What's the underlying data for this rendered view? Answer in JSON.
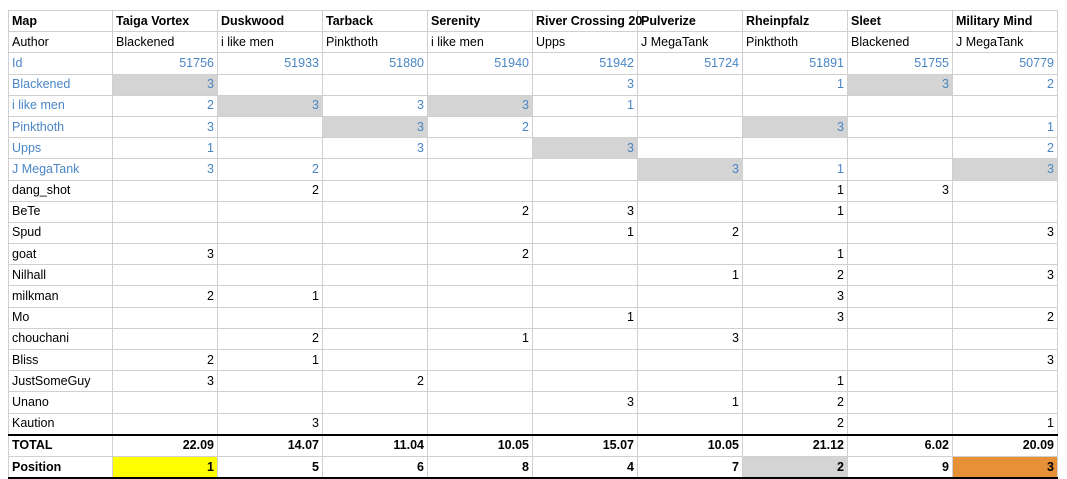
{
  "colors": {
    "link_blue": "#4a86c5",
    "self_vote_gray": "#d4d4d4",
    "first_place": "#ffff00",
    "third_place": "#e69138",
    "second_place": "#d4d4d4"
  },
  "row_labels": {
    "map": "Map",
    "author": "Author",
    "id": "Id",
    "total": "TOTAL",
    "position": "Position"
  },
  "maps": [
    {
      "name": "Taiga Vortex",
      "author": "Blackened",
      "id": "51756"
    },
    {
      "name": "Duskwood",
      "author": "i like men",
      "id": "51933"
    },
    {
      "name": "Tarback",
      "author": "Pinkthoth",
      "id": "51880"
    },
    {
      "name": "Serenity",
      "author": "i like men",
      "id": "51940"
    },
    {
      "name": "River Crossing 20",
      "author": "Upps",
      "id": "51942"
    },
    {
      "name": "Pulverize",
      "author": "J MegaTank",
      "id": "51724"
    },
    {
      "name": "Rheinpfalz",
      "author": "Pinkthoth",
      "id": "51891"
    },
    {
      "name": "Sleet",
      "author": "Blackened",
      "id": "51755"
    },
    {
      "name": "Military Mind",
      "author": "J MegaTank",
      "id": "50779"
    }
  ],
  "voters": [
    {
      "name": "Blackened",
      "author": true,
      "votes": [
        "3",
        "",
        "",
        "",
        "3",
        "",
        "1",
        "3",
        "2"
      ],
      "gray": [
        0,
        7
      ]
    },
    {
      "name": "i like men",
      "author": true,
      "votes": [
        "2",
        "3",
        "3",
        "3",
        "1",
        "",
        "",
        "",
        ""
      ],
      "gray": [
        1,
        3
      ]
    },
    {
      "name": "Pinkthoth",
      "author": true,
      "votes": [
        "3",
        "",
        "3",
        "2",
        "",
        "",
        "3",
        "",
        "1"
      ],
      "gray": [
        2,
        6
      ]
    },
    {
      "name": "Upps",
      "author": true,
      "votes": [
        "1",
        "",
        "3",
        "",
        "3",
        "",
        "",
        "",
        "2"
      ],
      "gray": [
        4
      ]
    },
    {
      "name": "J MegaTank",
      "author": true,
      "votes": [
        "3",
        "2",
        "",
        "",
        "",
        "3",
        "1",
        "",
        "3"
      ],
      "gray": [
        5,
        8
      ]
    },
    {
      "name": "dang_shot",
      "author": false,
      "votes": [
        "",
        "2",
        "",
        "",
        "",
        "",
        "1",
        "3",
        ""
      ],
      "gray": []
    },
    {
      "name": "BeTe",
      "author": false,
      "votes": [
        "",
        "",
        "",
        "2",
        "3",
        "",
        "1",
        "",
        ""
      ],
      "gray": []
    },
    {
      "name": "Spud",
      "author": false,
      "votes": [
        "",
        "",
        "",
        "",
        "1",
        "2",
        "",
        "",
        "3"
      ],
      "gray": []
    },
    {
      "name": "goat",
      "author": false,
      "votes": [
        "3",
        "",
        "",
        "2",
        "",
        "",
        "1",
        "",
        ""
      ],
      "gray": []
    },
    {
      "name": "Nilhall",
      "author": false,
      "votes": [
        "",
        "",
        "",
        "",
        "",
        "1",
        "2",
        "",
        "3"
      ],
      "gray": []
    },
    {
      "name": "milkman",
      "author": false,
      "votes": [
        "2",
        "1",
        "",
        "",
        "",
        "",
        "3",
        "",
        ""
      ],
      "gray": []
    },
    {
      "name": "Mo",
      "author": false,
      "votes": [
        "",
        "",
        "",
        "",
        "1",
        "",
        "3",
        "",
        "2"
      ],
      "gray": []
    },
    {
      "name": "chouchani",
      "author": false,
      "votes": [
        "",
        "2",
        "",
        "1",
        "",
        "3",
        "",
        "",
        ""
      ],
      "gray": []
    },
    {
      "name": "Bliss",
      "author": false,
      "votes": [
        "2",
        "1",
        "",
        "",
        "",
        "",
        "",
        "",
        "3"
      ],
      "gray": []
    },
    {
      "name": "JustSomeGuy",
      "author": false,
      "votes": [
        "3",
        "",
        "2",
        "",
        "",
        "",
        "1",
        "",
        ""
      ],
      "gray": []
    },
    {
      "name": "Unano",
      "author": false,
      "votes": [
        "",
        "",
        "",
        "",
        "3",
        "1",
        "2",
        "",
        ""
      ],
      "gray": []
    },
    {
      "name": "Kaution",
      "author": false,
      "votes": [
        "",
        "3",
        "",
        "",
        "",
        "",
        "2",
        "",
        "1"
      ],
      "gray": []
    }
  ],
  "totals": [
    "22.09",
    "14.07",
    "11.04",
    "10.05",
    "15.07",
    "10.05",
    "21.12",
    "6.02",
    "20.09"
  ],
  "positions": [
    {
      "value": "1",
      "highlight": "#ffff00"
    },
    {
      "value": "5",
      "highlight": ""
    },
    {
      "value": "6",
      "highlight": ""
    },
    {
      "value": "8",
      "highlight": ""
    },
    {
      "value": "4",
      "highlight": ""
    },
    {
      "value": "7",
      "highlight": ""
    },
    {
      "value": "2",
      "highlight": "#d4d4d4"
    },
    {
      "value": "9",
      "highlight": ""
    },
    {
      "value": "3",
      "highlight": "#e69138"
    }
  ]
}
